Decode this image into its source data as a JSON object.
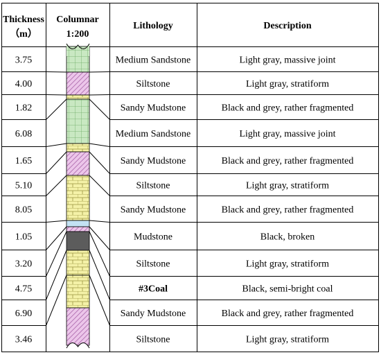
{
  "header": {
    "thickness": [
      "Thickness",
      "（m）"
    ],
    "columnar": [
      "Columnar",
      "1:200"
    ],
    "lithology": "Lithology",
    "description": "Description"
  },
  "rows": [
    {
      "thickness": "3.75",
      "lithology": "Medium Sandstone",
      "description": "Light gray, massive joint",
      "pattern": "green-grid"
    },
    {
      "thickness": "4.00",
      "lithology": "Siltstone",
      "description": "Light gray, stratiform",
      "pattern": "pink-hatch"
    },
    {
      "thickness": "1.82",
      "lithology": "Sandy Mudstone",
      "description": "Black and grey, rather fragmented",
      "pattern": "yellow-brick"
    },
    {
      "thickness": "6.08",
      "lithology": "Medium Sandstone",
      "description": "Light gray, massive joint",
      "pattern": "green-grid"
    },
    {
      "thickness": "1.65",
      "lithology": "Sandy Mudstone",
      "description": "Black and grey, rather fragmented",
      "pattern": "yellow-brick"
    },
    {
      "thickness": "5.10",
      "lithology": "Siltstone",
      "description": "Light gray, stratiform",
      "pattern": "pink-hatch"
    },
    {
      "thickness": "8.05",
      "lithology": "Sandy Mudstone",
      "description": "Black and grey, rather fragmented",
      "pattern": "yellow-brick"
    },
    {
      "thickness": "1.05",
      "lithology": "Mudstone",
      "description": "Black, broken",
      "pattern": "blue-solid"
    },
    {
      "thickness": "3.20",
      "lithology": "Siltstone",
      "description": "Light gray, stratiform",
      "pattern": "pink-hatch"
    },
    {
      "thickness": "4.75",
      "lithology": "#3Coal",
      "description": "Black, semi-bright coal",
      "pattern": "coal-solid"
    },
    {
      "thickness": "6.90",
      "lithology": "Sandy Mudstone",
      "description": "Black and grey, rather fragmented",
      "pattern": "yellow-brick"
    },
    {
      "thickness": "3.46",
      "lithology": "Siltstone",
      "description": "Light gray, stratiform",
      "pattern": "pink-hatch"
    }
  ],
  "colors": {
    "green": "#c9e8c2",
    "pink": "#ecc6ea",
    "yellow": "#f4f1a7",
    "blue": "#c3e2f3",
    "coal": "#5c5c5c",
    "line": "#000000",
    "hatch": "#b070b0",
    "grid": "#6aaa62",
    "brick": "#9a9440"
  }
}
